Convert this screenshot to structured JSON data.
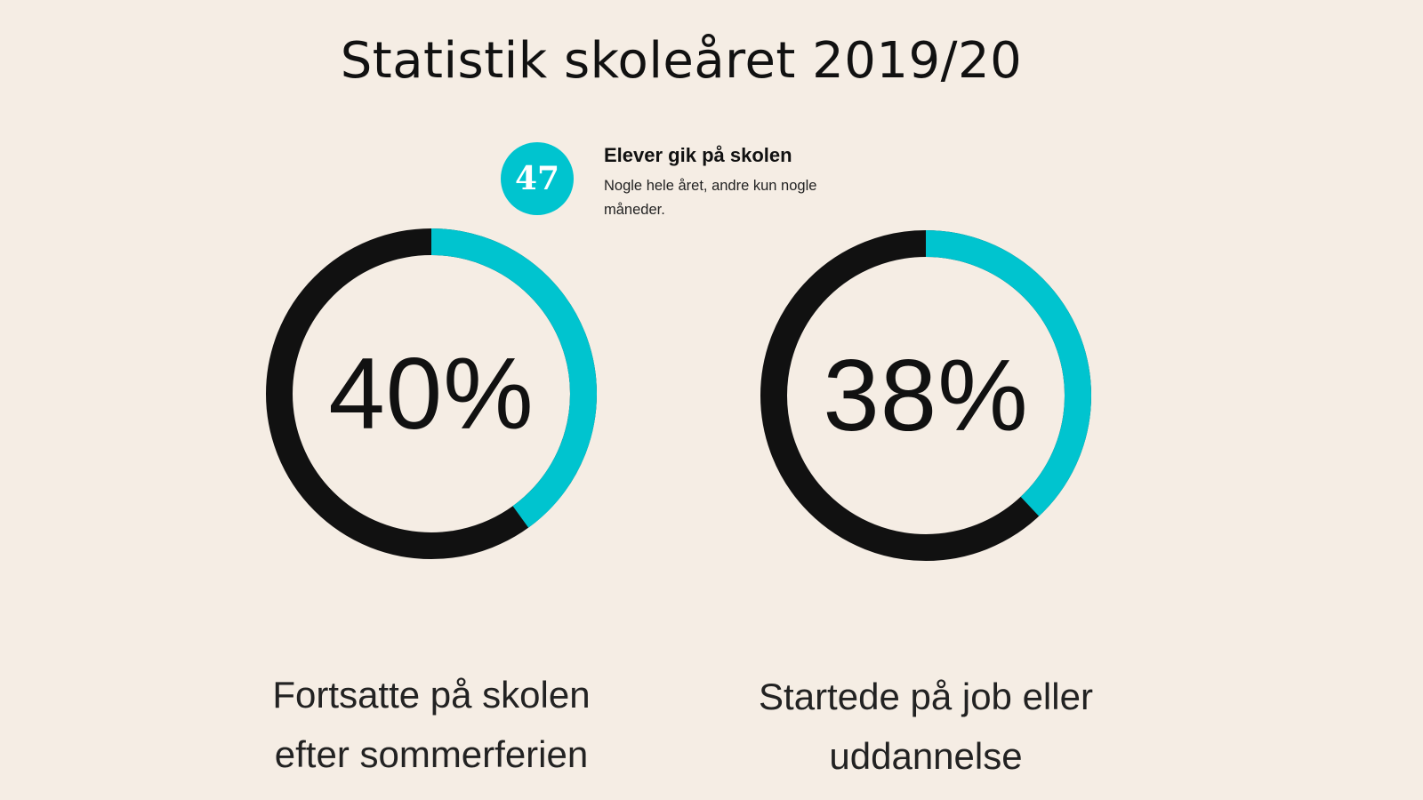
{
  "page": {
    "title": "Statistik skoleåret 2019/20"
  },
  "callout": {
    "badge": "47",
    "heading": "Elever gik på skolen",
    "description": "Nogle hele året, andre kun nogle måneder."
  },
  "colors": {
    "background": "#f5ede4",
    "accent": "#00c4cf",
    "track": "#111111"
  },
  "chart_data": [
    {
      "type": "pie",
      "value": 40,
      "unit": "%",
      "display": "40%",
      "label": "Fortsatte på skolen efter sommerferien",
      "label_lines": [
        "Fortsatte på skolen",
        "efter sommerferien"
      ]
    },
    {
      "type": "pie",
      "value": 38,
      "unit": "%",
      "display": "38%",
      "label": "Startede på job eller uddannelse",
      "label_lines": [
        "Startede på job eller",
        "uddannelse"
      ]
    }
  ]
}
